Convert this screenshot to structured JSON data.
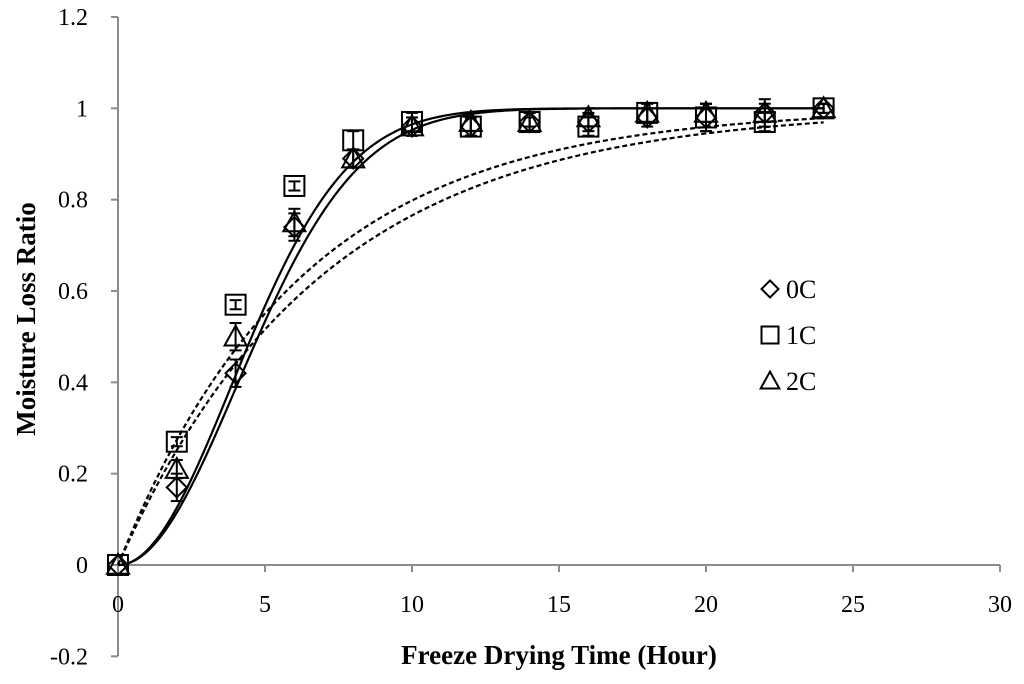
{
  "chart_data": {
    "type": "scatter",
    "title": "",
    "xlabel": "Freeze Drying Time (Hour)",
    "ylabel": "Moisture Loss Ratio",
    "xlim": [
      0,
      30
    ],
    "ylim": [
      -0.2,
      1.2
    ],
    "xticks": [
      0,
      5,
      10,
      15,
      20,
      25,
      30
    ],
    "yticks": [
      -0.2,
      0,
      0.2,
      0.4,
      0.6,
      0.8,
      1,
      1.2
    ],
    "xtick_labels": [
      "0",
      "5",
      "10",
      "15",
      "20",
      "25",
      "30"
    ],
    "ytick_labels": [
      "-0.2",
      "0",
      "0.2",
      "0.4",
      "0.6",
      "0.8",
      "1",
      "1.2"
    ],
    "grid": false,
    "legend_position": "right-center",
    "series": [
      {
        "name": "0C",
        "marker": "diamond",
        "x": [
          0,
          2,
          4,
          6,
          8,
          10,
          12,
          14,
          16,
          18,
          20,
          22,
          24
        ],
        "y": [
          0,
          0.17,
          0.42,
          0.74,
          0.89,
          0.96,
          0.96,
          0.97,
          0.97,
          0.98,
          0.98,
          0.99,
          1.0
        ],
        "err": [
          0,
          0.03,
          0.03,
          0.03,
          0.02,
          0.02,
          0.02,
          0.02,
          0.02,
          0.02,
          0.03,
          0.03,
          0.01
        ]
      },
      {
        "name": "1C",
        "marker": "square",
        "x": [
          0,
          2,
          4,
          6,
          8,
          10,
          12,
          14,
          16,
          18,
          20,
          22,
          24
        ],
        "y": [
          0,
          0.27,
          0.57,
          0.83,
          0.93,
          0.97,
          0.96,
          0.97,
          0.96,
          0.99,
          0.98,
          0.97,
          1.0
        ],
        "err": [
          0,
          0.01,
          0.01,
          0.01,
          0.02,
          0.02,
          0.02,
          0.01,
          0.02,
          0.02,
          0.03,
          0.02,
          0.01
        ]
      },
      {
        "name": "2C",
        "marker": "triangle",
        "x": [
          0,
          2,
          4,
          6,
          8,
          10,
          12,
          14,
          16,
          18,
          20,
          22,
          24
        ],
        "y": [
          0,
          0.21,
          0.5,
          0.75,
          0.89,
          0.96,
          0.97,
          0.97,
          0.98,
          0.99,
          0.99,
          0.99,
          1.0
        ],
        "err": [
          0,
          0.02,
          0.03,
          0.03,
          0.02,
          0.02,
          0.02,
          0.02,
          0.02,
          0.02,
          0.02,
          0.02,
          0.01
        ]
      }
    ],
    "fit_curves": [
      {
        "name": "solid-fit-a",
        "style": "solid",
        "model": "sigmoid",
        "k": 0.0335,
        "n": 2.0,
        "xmax": 24
      },
      {
        "name": "solid-fit-b",
        "style": "solid",
        "model": "sigmoid",
        "k": 0.0305,
        "n": 2.0,
        "xmax": 24
      },
      {
        "name": "dashed-fit-a",
        "style": "dashed",
        "model": "exponential",
        "k": 0.16,
        "n": 1.0,
        "xmax": 24
      },
      {
        "name": "dashed-fit-b",
        "style": "dashed",
        "model": "exponential",
        "k": 0.145,
        "n": 1.0,
        "xmax": 24
      }
    ]
  }
}
